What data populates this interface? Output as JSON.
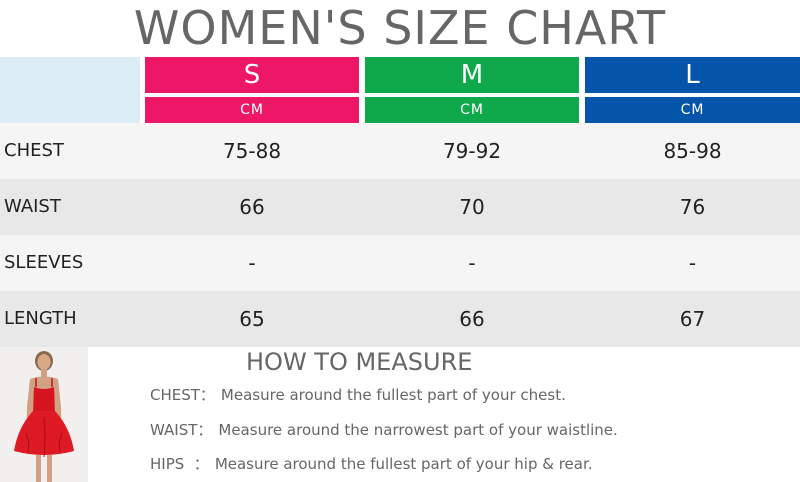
{
  "title": "WOMEN'S SIZE CHART",
  "colors": {
    "S": "#ee1767",
    "M": "#0fa84a",
    "L": "#0454a9",
    "corner": "#dcedf6",
    "row_light": "#f5f5f5",
    "row_dark": "#e8e8e8"
  },
  "sizes": [
    {
      "label": "S",
      "unit": "CM"
    },
    {
      "label": "M",
      "unit": "CM"
    },
    {
      "label": "L",
      "unit": "CM"
    }
  ],
  "rows": [
    {
      "label": "CHEST",
      "values": [
        "75-88",
        "79-92",
        "85-98"
      ]
    },
    {
      "label": "WAIST",
      "values": [
        "66",
        "70",
        "76"
      ]
    },
    {
      "label": "SLEEVES",
      "values": [
        "-",
        "-",
        "-"
      ]
    },
    {
      "label": "LENGTH",
      "values": [
        "65",
        "66",
        "67"
      ]
    }
  ],
  "how_to_measure": {
    "title": "HOW TO MEASURE",
    "items": [
      {
        "key": "CHEST：",
        "text": "Measure around the fullest part of your chest."
      },
      {
        "key": "WAIST：",
        "text": "Measure around the narrowest part of your waistline."
      },
      {
        "key": "HIPS  ：",
        "text": "Measure around the fullest part of your hip & rear."
      }
    ]
  }
}
